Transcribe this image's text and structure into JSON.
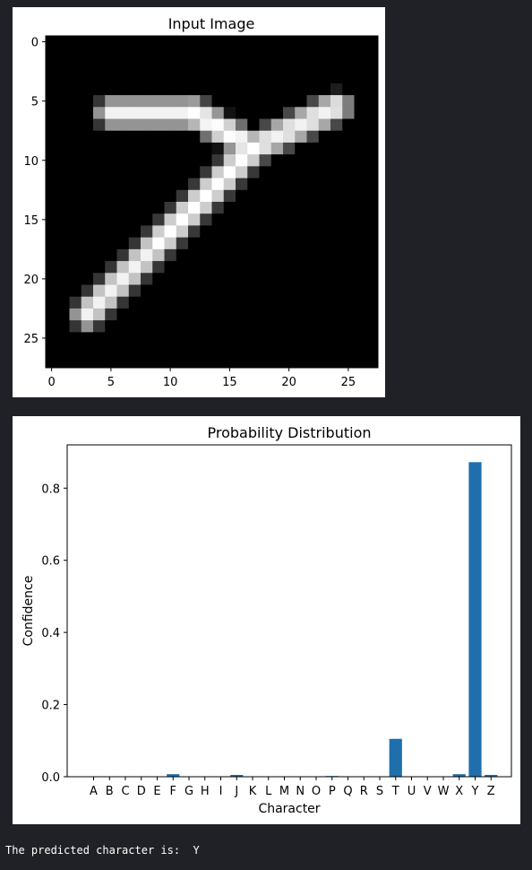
{
  "image_plot": {
    "title": "Input Image",
    "x_ticks": [
      "0",
      "5",
      "10",
      "15",
      "20",
      "25"
    ],
    "y_ticks": [
      "0",
      "5",
      "10",
      "15",
      "20",
      "25"
    ],
    "colormap": "gray",
    "grid_size": [
      28,
      28
    ],
    "strokes": [
      {
        "from": [
          5,
          6
        ],
        "to": [
          12,
          6
        ],
        "intensity": 0.95
      },
      {
        "from": [
          12,
          6
        ],
        "to": [
          17,
          9
        ],
        "intensity": 1.0
      },
      {
        "from": [
          17,
          9
        ],
        "to": [
          24,
          5.5
        ],
        "intensity": 0.95
      },
      {
        "from": [
          17,
          9
        ],
        "to": [
          9,
          17
        ],
        "intensity": 1.0
      },
      {
        "from": [
          9,
          17
        ],
        "to": [
          3,
          23
        ],
        "intensity": 0.95
      }
    ]
  },
  "chart_data": {
    "type": "bar",
    "title": "Probability Distribution",
    "xlabel": "Character",
    "ylabel": "Confidence",
    "ylim": [
      0,
      0.92
    ],
    "y_ticks": [
      "0.0",
      "0.2",
      "0.4",
      "0.6",
      "0.8"
    ],
    "categories": [
      "A",
      "B",
      "C",
      "D",
      "E",
      "F",
      "G",
      "H",
      "I",
      "J",
      "K",
      "L",
      "M",
      "N",
      "O",
      "P",
      "Q",
      "R",
      "S",
      "T",
      "U",
      "V",
      "W",
      "X",
      "Y",
      "Z"
    ],
    "values": [
      0.001,
      0.001,
      0.0005,
      0.0005,
      0.0005,
      0.007,
      0.0005,
      0.0005,
      0.0005,
      0.005,
      0.0005,
      0.0005,
      0.0005,
      0.0005,
      0.0005,
      0.002,
      0.0005,
      0.0005,
      0.0005,
      0.105,
      0.0005,
      0.0005,
      0.0005,
      0.007,
      0.872,
      0.005
    ],
    "bar_color": "#1f6fad",
    "grid": false
  },
  "output": {
    "text": "The predicted character is:  Y"
  }
}
